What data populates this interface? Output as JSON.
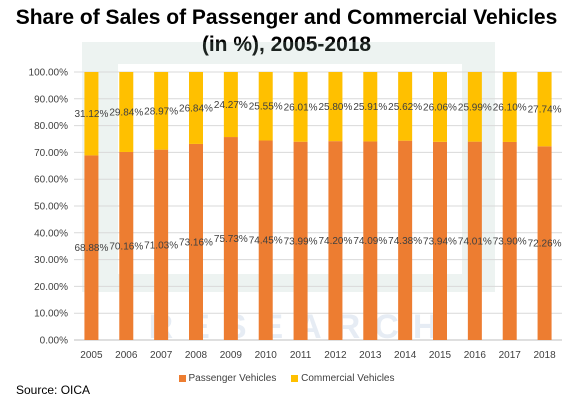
{
  "colors": {
    "passenger": "#ED7D31",
    "commercial": "#FFC000",
    "grid": "#d9d9d9",
    "axis": "#bfbfbf"
  },
  "source": "Source: OICA",
  "chart_data": {
    "type": "bar",
    "stacked": true,
    "title": "Share of Sales of Passenger and Commercial Vehicles (in %), 2005-2018",
    "title_lines": [
      "Share of Sales of Passenger and Commercial Vehicles",
      "(in %), 2005-2018"
    ],
    "categories": [
      "2005",
      "2006",
      "2007",
      "2008",
      "2009",
      "2010",
      "2011",
      "2012",
      "2013",
      "2014",
      "2015",
      "2016",
      "2017",
      "2018"
    ],
    "series": [
      {
        "name": "Passenger Vehicles",
        "values": [
          68.88,
          70.16,
          71.03,
          73.16,
          75.73,
          74.45,
          73.99,
          74.2,
          74.09,
          74.38,
          73.94,
          74.01,
          73.9,
          72.26
        ],
        "labels": [
          "68.88%",
          "70.16%",
          "71.03%",
          "73.16%",
          "75.73%",
          "74.45%",
          "73.99%",
          "74.20%",
          "74.09%",
          "74.38%",
          "73.94%",
          "74.01%",
          "73.90%",
          "72.26%"
        ]
      },
      {
        "name": "Commercial Vehicles",
        "values": [
          31.12,
          29.84,
          28.97,
          26.84,
          24.27,
          25.55,
          26.01,
          25.8,
          25.91,
          25.62,
          26.06,
          25.99,
          26.1,
          27.74
        ],
        "labels": [
          "31.12%",
          "29.84%",
          "28.97%",
          "26.84%",
          "24.27%",
          "25.55%",
          "26.01%",
          "25.80%",
          "25.91%",
          "25.62%",
          "26.06%",
          "25.99%",
          "26.10%",
          "27.74%"
        ]
      }
    ],
    "ylim": [
      0,
      100
    ],
    "yticks": [
      "0.00%",
      "10.00%",
      "20.00%",
      "30.00%",
      "40.00%",
      "50.00%",
      "60.00%",
      "70.00%",
      "80.00%",
      "90.00%",
      "100.00%"
    ],
    "xlabel": "",
    "ylabel": "",
    "grid": true,
    "legend_position": "bottom"
  }
}
